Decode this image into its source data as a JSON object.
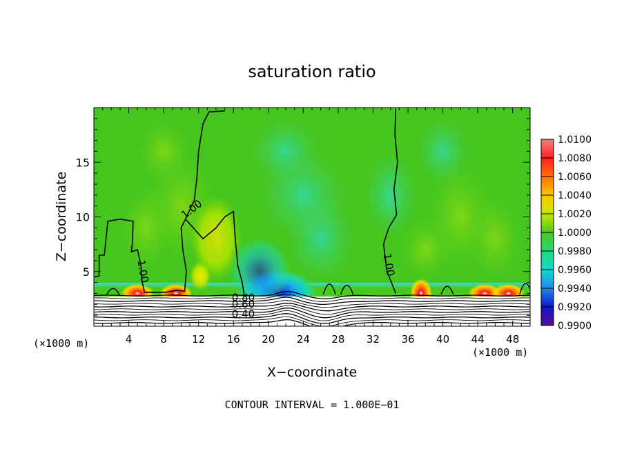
{
  "chart_data": {
    "type": "heatmap",
    "title": "saturation ratio",
    "xlabel": "X−coordinate",
    "ylabel": "Z−coordinate",
    "x_unit_left": "(×1000 m)",
    "x_unit_right": "(×1000 m)",
    "xlim": [
      0,
      50
    ],
    "ylim": [
      0,
      20
    ],
    "x_ticks": [
      4,
      8,
      12,
      16,
      20,
      24,
      28,
      32,
      36,
      40,
      44,
      48
    ],
    "y_ticks": [
      5,
      10,
      15
    ],
    "contour_interval_text": "CONTOUR INTERVAL = 1.000E−01",
    "colorbar": {
      "levels": [
        "1.0100",
        "1.0080",
        "1.0060",
        "1.0040",
        "1.0020",
        "1.0000",
        "0.9980",
        "0.9960",
        "0.9940",
        "0.9920",
        "0.9900"
      ],
      "colors": [
        "#f08080",
        "#ff2020",
        "#ff7000",
        "#ffc800",
        "#c8e600",
        "#4cc81e",
        "#22d87a",
        "#12d8d0",
        "#2288f0",
        "#1018c8",
        "#5a0a96"
      ]
    },
    "contour_labels": [
      {
        "text": "1.00",
        "x": 10.4,
        "z": 9.8,
        "angle": -38
      },
      {
        "text": "1.00",
        "x": 5.0,
        "z": 6.0,
        "angle": 80
      },
      {
        "text": "1.00",
        "x": 33.2,
        "z": 6.6,
        "angle": 80
      },
      {
        "text": "0.80",
        "x": 15.8,
        "z": 2.3,
        "angle": 0
      },
      {
        "text": "0.60",
        "x": 15.8,
        "z": 1.7,
        "angle": 0
      },
      {
        "text": "0.40",
        "x": 15.8,
        "z": 0.8,
        "angle": 0
      }
    ],
    "saturated_region": {
      "description_value": "1.0000",
      "surface_layer_top_z": 2.7
    },
    "warm_spots": [
      {
        "x": 5.0,
        "z": 3.0,
        "value": 1.008
      },
      {
        "x": 9.4,
        "z": 3.0,
        "value": 1.008
      },
      {
        "x": 12.2,
        "z": 4.6,
        "value": 1.003
      },
      {
        "x": 37.5,
        "z": 3.0,
        "value": 1.005
      },
      {
        "x": 44.8,
        "z": 3.0,
        "value": 1.008
      },
      {
        "x": 47.5,
        "z": 3.0,
        "value": 1.006
      }
    ],
    "dry_spots": [
      {
        "x": 21.0,
        "z": 3.0,
        "value": 0.991
      },
      {
        "x": 19.0,
        "z": 5.0,
        "value": 0.996
      }
    ]
  }
}
